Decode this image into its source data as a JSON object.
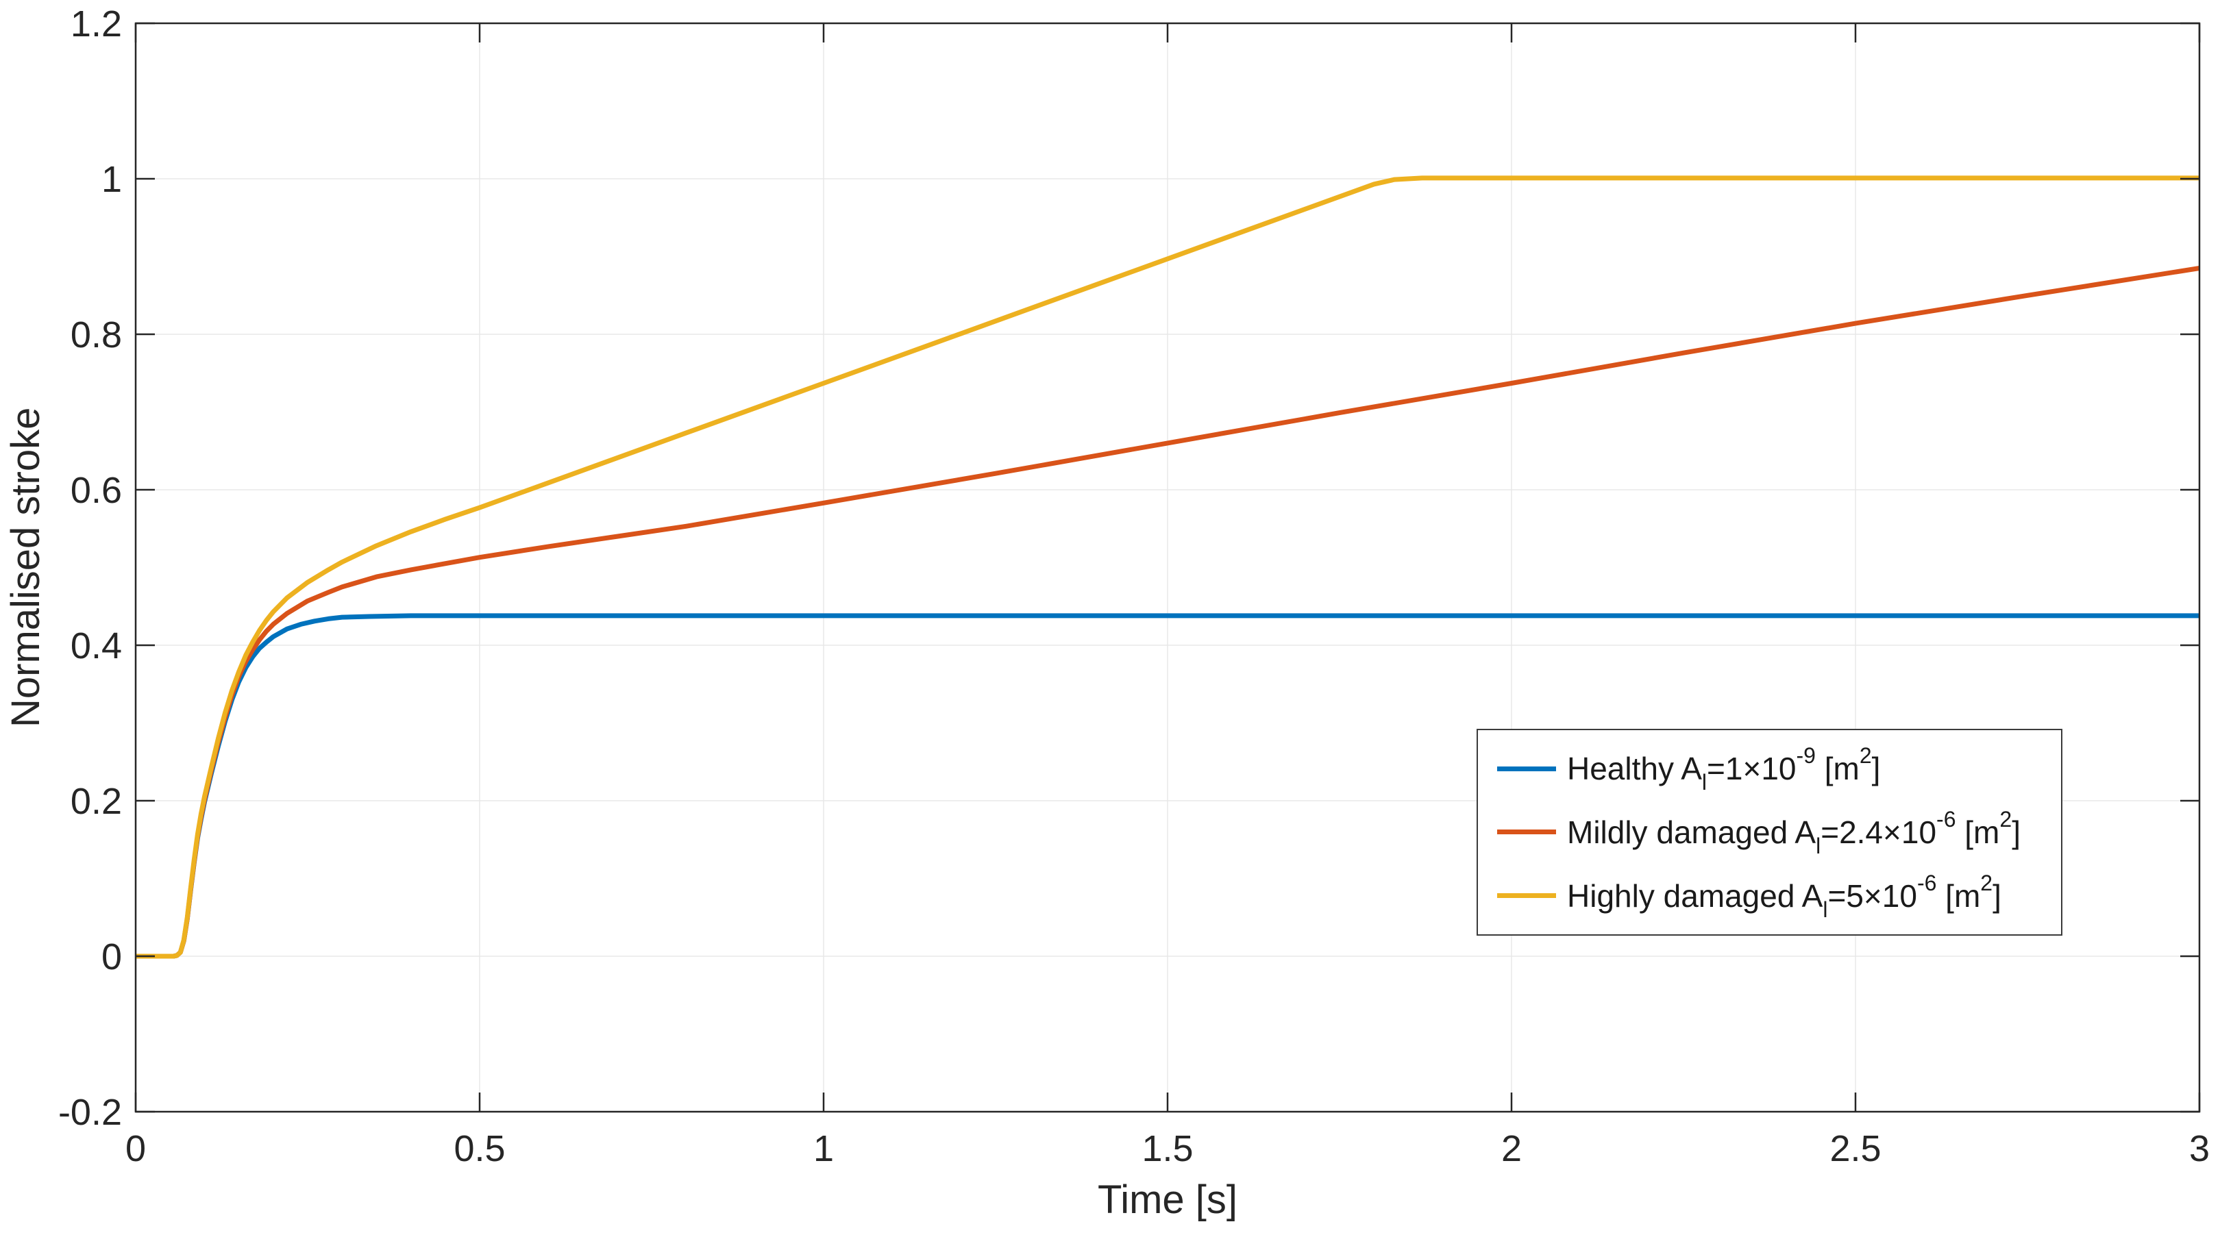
{
  "chart_data": {
    "type": "line",
    "title": "",
    "xlabel": "Time [s]",
    "ylabel": "Normalised stroke",
    "xlim": [
      0,
      3
    ],
    "ylim": [
      -0.2,
      1.2
    ],
    "grid": true,
    "legend_position": "inside-lower-right",
    "axis_color": "#262626",
    "grid_color": "#e8e8e8",
    "xticks": {
      "values": [
        0,
        0.5,
        1,
        1.5,
        2,
        2.5,
        3
      ],
      "labels": [
        "0",
        "0.5",
        "1",
        "1.5",
        "2",
        "2.5",
        "3"
      ]
    },
    "yticks": {
      "values": [
        -0.2,
        0,
        0.2,
        0.4,
        0.6,
        0.8,
        1,
        1.2
      ],
      "labels": [
        "-0.2",
        "0",
        "0.2",
        "0.4",
        "0.6",
        "0.8",
        "1",
        "1.2"
      ]
    },
    "series": [
      {
        "name": "healthy",
        "color": "#0072BD",
        "points": [
          [
            0,
            0
          ],
          [
            0.055,
            0
          ],
          [
            0.06,
            0.001
          ],
          [
            0.065,
            0.005
          ],
          [
            0.07,
            0.02
          ],
          [
            0.075,
            0.048
          ],
          [
            0.08,
            0.085
          ],
          [
            0.085,
            0.12
          ],
          [
            0.09,
            0.152
          ],
          [
            0.095,
            0.176
          ],
          [
            0.1,
            0.198
          ],
          [
            0.11,
            0.235
          ],
          [
            0.12,
            0.27
          ],
          [
            0.13,
            0.302
          ],
          [
            0.14,
            0.33
          ],
          [
            0.15,
            0.353
          ],
          [
            0.16,
            0.371
          ],
          [
            0.17,
            0.385
          ],
          [
            0.18,
            0.396
          ],
          [
            0.19,
            0.404
          ],
          [
            0.2,
            0.411
          ],
          [
            0.22,
            0.421
          ],
          [
            0.24,
            0.427
          ],
          [
            0.26,
            0.431
          ],
          [
            0.28,
            0.434
          ],
          [
            0.3,
            0.436
          ],
          [
            0.34,
            0.437
          ],
          [
            0.4,
            0.438
          ],
          [
            0.6,
            0.438
          ],
          [
            1,
            0.438
          ],
          [
            1.5,
            0.438
          ],
          [
            2,
            0.438
          ],
          [
            2.5,
            0.438
          ],
          [
            3,
            0.438
          ]
        ]
      },
      {
        "name": "mildly-damaged",
        "color": "#D95319",
        "points": [
          [
            0,
            0
          ],
          [
            0.055,
            0
          ],
          [
            0.06,
            0.001
          ],
          [
            0.065,
            0.005
          ],
          [
            0.07,
            0.02
          ],
          [
            0.075,
            0.048
          ],
          [
            0.08,
            0.086
          ],
          [
            0.085,
            0.121
          ],
          [
            0.09,
            0.154
          ],
          [
            0.095,
            0.179
          ],
          [
            0.1,
            0.201
          ],
          [
            0.11,
            0.239
          ],
          [
            0.12,
            0.275
          ],
          [
            0.13,
            0.307
          ],
          [
            0.14,
            0.336
          ],
          [
            0.15,
            0.36
          ],
          [
            0.16,
            0.379
          ],
          [
            0.17,
            0.394
          ],
          [
            0.18,
            0.407
          ],
          [
            0.19,
            0.418
          ],
          [
            0.2,
            0.427
          ],
          [
            0.22,
            0.441
          ],
          [
            0.25,
            0.457
          ],
          [
            0.28,
            0.468
          ],
          [
            0.3,
            0.475
          ],
          [
            0.35,
            0.488
          ],
          [
            0.4,
            0.497
          ],
          [
            0.5,
            0.513
          ],
          [
            0.6,
            0.527
          ],
          [
            0.7,
            0.54
          ],
          [
            0.8,
            0.553
          ],
          [
            0.9,
            0.568
          ],
          [
            1,
            0.583
          ],
          [
            1.25,
            0.621
          ],
          [
            1.5,
            0.66
          ],
          [
            1.75,
            0.699
          ],
          [
            2,
            0.737
          ],
          [
            2.25,
            0.776
          ],
          [
            2.5,
            0.814
          ],
          [
            2.75,
            0.85
          ],
          [
            3,
            0.885
          ]
        ]
      },
      {
        "name": "highly-damaged",
        "color": "#EDB120",
        "points": [
          [
            0,
            0
          ],
          [
            0.055,
            0
          ],
          [
            0.06,
            0.001
          ],
          [
            0.065,
            0.005
          ],
          [
            0.07,
            0.021
          ],
          [
            0.075,
            0.05
          ],
          [
            0.08,
            0.088
          ],
          [
            0.085,
            0.124
          ],
          [
            0.09,
            0.157
          ],
          [
            0.095,
            0.183
          ],
          [
            0.1,
            0.205
          ],
          [
            0.11,
            0.243
          ],
          [
            0.12,
            0.28
          ],
          [
            0.13,
            0.313
          ],
          [
            0.14,
            0.342
          ],
          [
            0.15,
            0.366
          ],
          [
            0.16,
            0.387
          ],
          [
            0.17,
            0.404
          ],
          [
            0.18,
            0.419
          ],
          [
            0.19,
            0.432
          ],
          [
            0.2,
            0.443
          ],
          [
            0.22,
            0.461
          ],
          [
            0.25,
            0.481
          ],
          [
            0.28,
            0.497
          ],
          [
            0.3,
            0.507
          ],
          [
            0.35,
            0.528
          ],
          [
            0.4,
            0.546
          ],
          [
            0.45,
            0.562
          ],
          [
            0.5,
            0.577
          ],
          [
            0.6,
            0.609
          ],
          [
            0.8,
            0.673
          ],
          [
            1,
            0.737
          ],
          [
            1.2,
            0.801
          ],
          [
            1.4,
            0.865
          ],
          [
            1.6,
            0.929
          ],
          [
            1.8,
            0.993
          ],
          [
            1.83,
            0.999
          ],
          [
            1.87,
            1.001
          ],
          [
            2,
            1.001
          ],
          [
            2.5,
            1.001
          ],
          [
            3,
            1.001
          ]
        ]
      }
    ],
    "legend": [
      {
        "series": "healthy",
        "color": "#0072BD",
        "pre": "Healthy A",
        "sub": "l",
        "mid": "=1×10",
        "sup": "-9",
        "mid2": " [m",
        "sup2": "2",
        "end": "]"
      },
      {
        "series": "mildly-damaged",
        "color": "#D95319",
        "pre": "Mildly damaged A",
        "sub": "l",
        "mid": "=2.4×10",
        "sup": "-6",
        "mid2": " [m",
        "sup2": "2",
        "end": "]"
      },
      {
        "series": "highly-damaged",
        "color": "#EDB120",
        "pre": "Highly damaged A",
        "sub": "l",
        "mid": "=5×10",
        "sup": "-6",
        "mid2": " [m",
        "sup2": "2",
        "end": "]"
      }
    ]
  }
}
